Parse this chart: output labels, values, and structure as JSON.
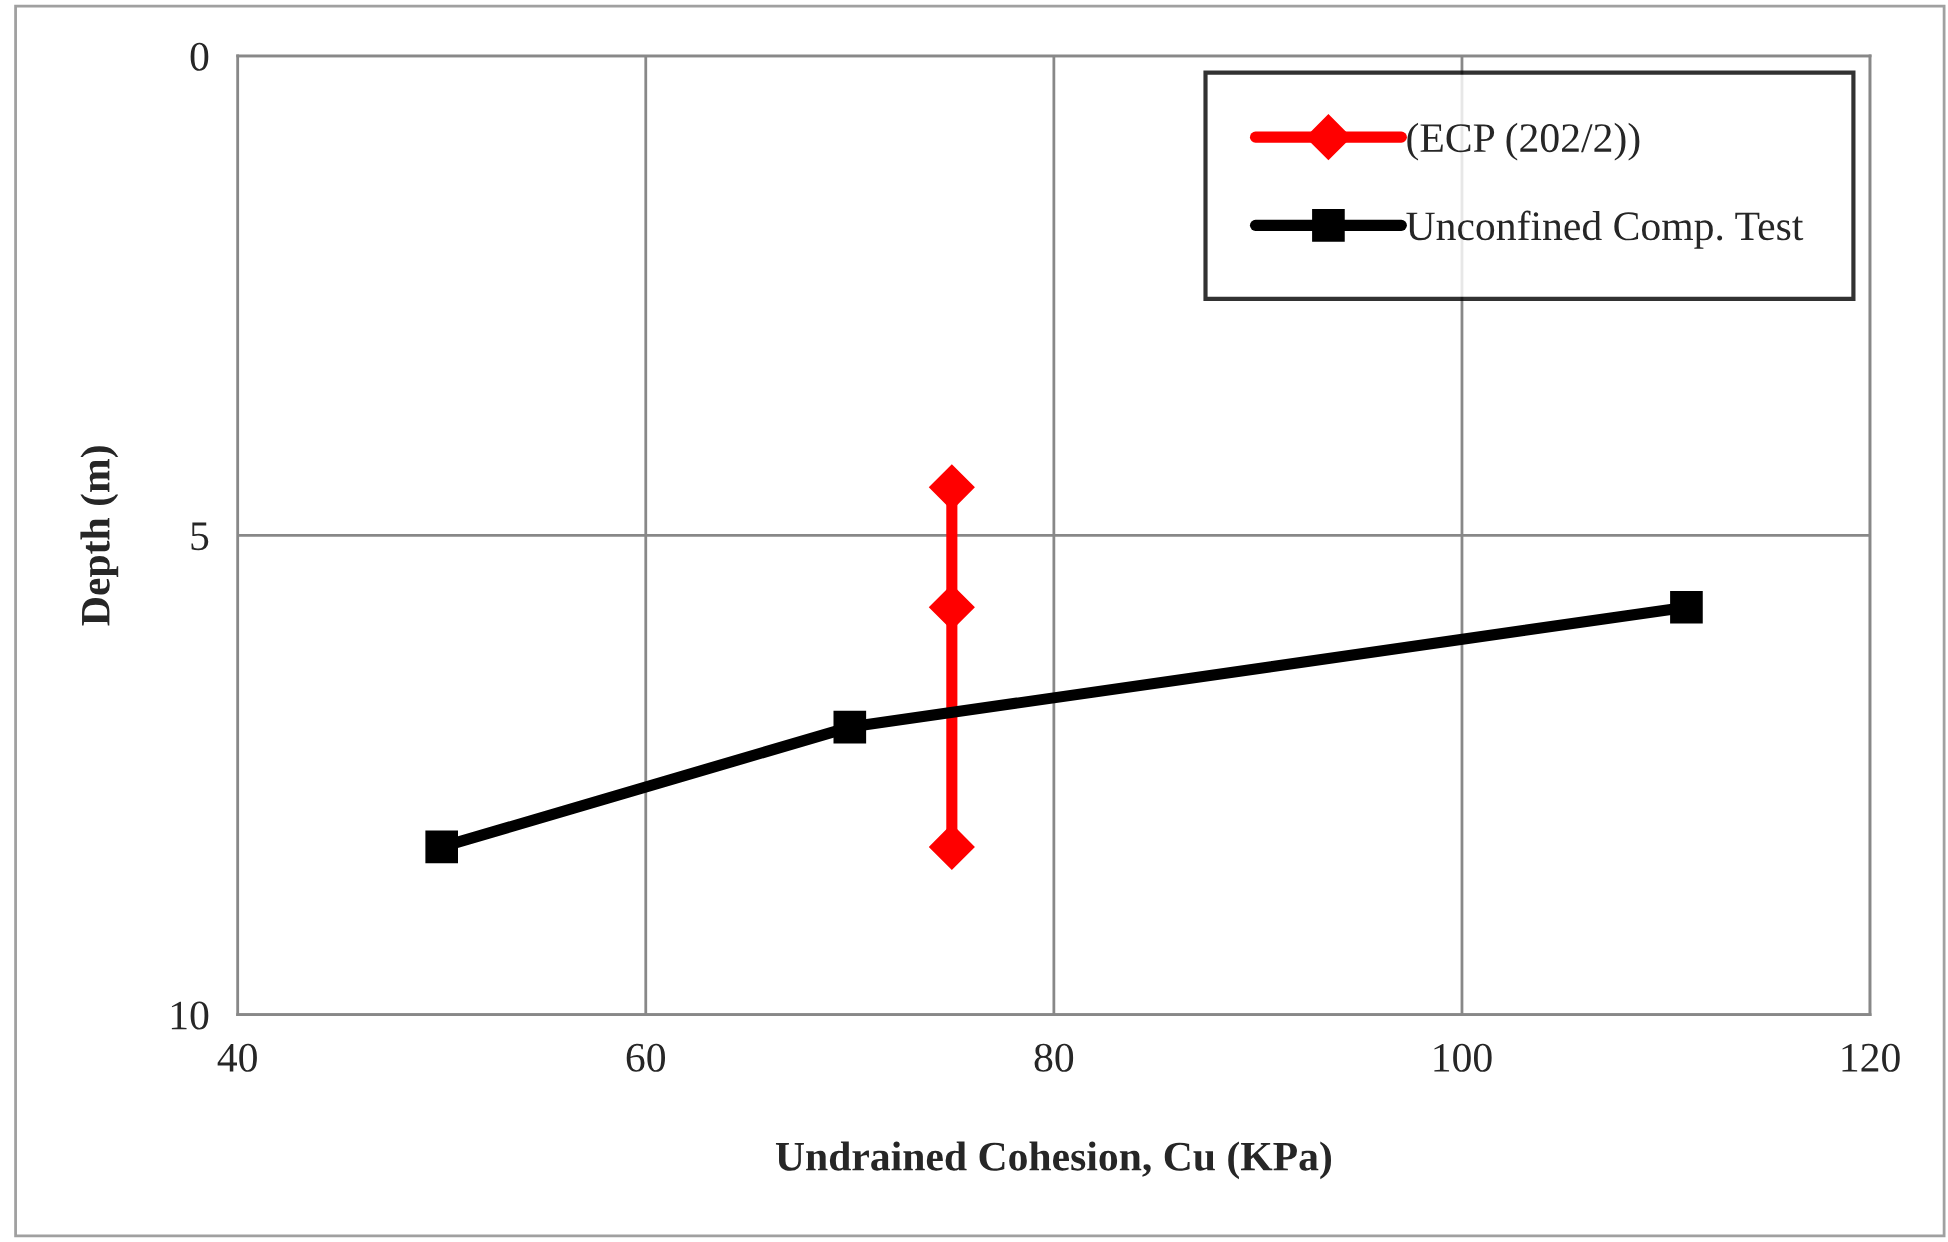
{
  "chart_data": {
    "type": "line",
    "xlabel": "Undrained Cohesion, Cu (KPa)",
    "ylabel": "Depth (m)",
    "xlim": [
      40,
      120
    ],
    "xticks": [
      40,
      60,
      80,
      100,
      120
    ],
    "ylim": [
      10,
      0
    ],
    "yticks": [
      0,
      5,
      10
    ],
    "grid": true,
    "legend": "top right",
    "series": [
      {
        "name": "(ECP (202/2))",
        "color": "#ff0000",
        "marker": "diamond",
        "x": [
          75,
          75,
          75
        ],
        "values": [
          4.5,
          5.75,
          8.25
        ]
      },
      {
        "name": "Unconfined Comp. Test",
        "color": "#000000",
        "marker": "square",
        "x": [
          50,
          70,
          111
        ],
        "values": [
          8.25,
          7,
          5.75
        ]
      }
    ]
  }
}
